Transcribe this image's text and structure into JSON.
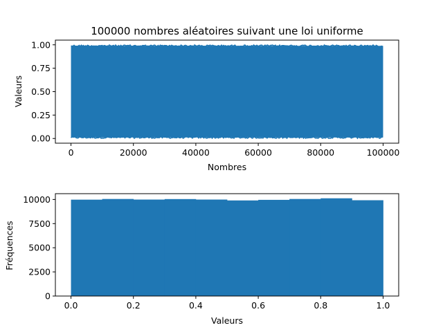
{
  "colors": {
    "series": "#1f77b4",
    "axis": "#000000",
    "background": "#ffffff"
  },
  "chart_data": [
    {
      "type": "line",
      "title": "100000 nombres aléatoires suivant une loi uniforme",
      "xlabel": "Nombres",
      "ylabel": "Valeurs",
      "xlim": [
        -5000,
        105000
      ],
      "ylim": [
        -0.05,
        1.05
      ],
      "x_ticks": [
        0,
        20000,
        40000,
        60000,
        80000,
        100000
      ],
      "x_tick_labels": [
        "0",
        "20000",
        "40000",
        "60000",
        "80000",
        "100000"
      ],
      "y_ticks": [
        0.0,
        0.25,
        0.5,
        0.75,
        1.0
      ],
      "y_tick_labels": [
        "0.00",
        "0.25",
        "0.50",
        "0.75",
        "1.00"
      ],
      "series": [
        {
          "x_range": [
            0,
            100000
          ],
          "y_range": [
            0,
            1
          ],
          "count": 100000,
          "distribution": "uniform"
        }
      ],
      "grid": false
    },
    {
      "type": "bar",
      "xlabel": "Valeurs",
      "ylabel": "Fréquences",
      "xlim": [
        -0.05,
        1.05
      ],
      "ylim": [
        0,
        10600
      ],
      "x_ticks": [
        0.0,
        0.2,
        0.4,
        0.6,
        0.8,
        1.0
      ],
      "x_tick_labels": [
        "0.0",
        "0.2",
        "0.4",
        "0.6",
        "0.8",
        "1.0"
      ],
      "y_ticks": [
        0,
        2500,
        5000,
        7500,
        10000
      ],
      "y_tick_labels": [
        "0",
        "2500",
        "5000",
        "7500",
        "10000"
      ],
      "bin_edges": [
        0.0,
        0.1,
        0.2,
        0.3,
        0.4,
        0.5,
        0.6,
        0.7,
        0.8,
        0.9,
        1.0
      ],
      "values": [
        9980,
        10050,
        9990,
        10040,
        9990,
        9900,
        9960,
        10050,
        10120,
        9920
      ],
      "grid": false
    }
  ]
}
